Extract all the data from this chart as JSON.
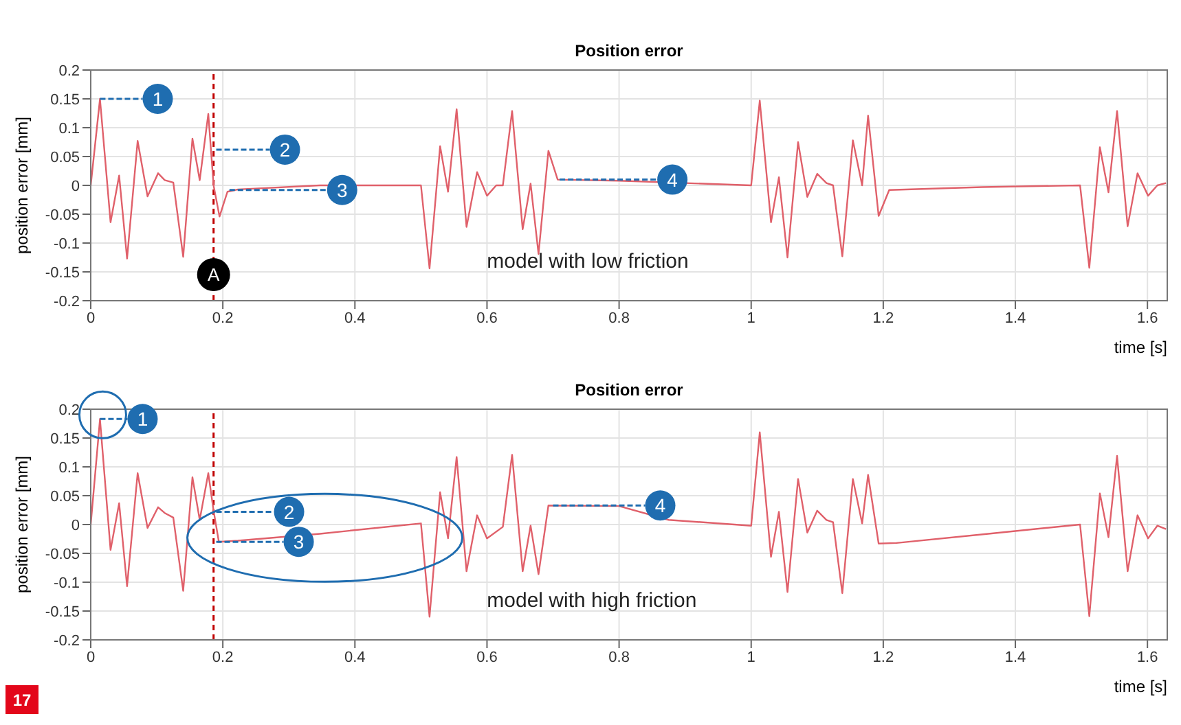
{
  "chart_data": [
    {
      "type": "line",
      "title": "Position error",
      "xlabel": "time [s]",
      "ylabel": "position error [mm]",
      "grid": true,
      "xlim": [
        0,
        1.63
      ],
      "xticks": [
        0,
        0.2,
        0.4,
        0.6,
        0.8,
        1,
        1.2,
        1.4,
        1.6
      ],
      "ylim": [
        -0.2,
        0.2
      ],
      "yticks": [
        -0.2,
        -0.15,
        -0.1,
        -0.05,
        0,
        0.05,
        0.1,
        0.15,
        0.2
      ],
      "x": [
        0,
        0.014,
        0.03,
        0.043,
        0.055,
        0.071,
        0.086,
        0.102,
        0.112,
        0.125,
        0.14,
        0.154,
        0.165,
        0.178,
        0.186,
        0.195,
        0.207,
        0.223,
        0.347,
        0.5,
        0.513,
        0.529,
        0.541,
        0.554,
        0.569,
        0.585,
        0.6,
        0.614,
        0.624,
        0.638,
        0.654,
        0.666,
        0.678,
        0.693,
        0.707,
        0.8,
        0.9,
        1.0,
        1.013,
        1.03,
        1.042,
        1.055,
        1.071,
        1.085,
        1.1,
        1.114,
        1.124,
        1.138,
        1.154,
        1.168,
        1.177,
        1.193,
        1.209,
        1.35,
        1.498,
        1.512,
        1.528,
        1.541,
        1.554,
        1.57,
        1.585,
        1.601,
        1.615,
        1.628
      ],
      "series": [
        {
          "color": "#e0606a",
          "values": [
            0,
            0.15,
            -0.064,
            0.017,
            -0.127,
            0.077,
            -0.019,
            0.021,
            0.009,
            0.005,
            -0.124,
            0.081,
            0.009,
            0.124,
            0,
            -0.054,
            -0.011,
            -0.007,
            0,
            0,
            -0.144,
            0.068,
            -0.011,
            0.132,
            -0.072,
            0.023,
            -0.018,
            0,
            0,
            0.129,
            -0.076,
            0.003,
            -0.119,
            0.06,
            0.01,
            0.008,
            0.004,
            0,
            0.147,
            -0.064,
            0.014,
            -0.125,
            0.075,
            -0.02,
            0.02,
            0.004,
            0,
            -0.123,
            0.078,
            0,
            0.121,
            -0.053,
            -0.008,
            -0.003,
            0,
            -0.143,
            0.066,
            -0.012,
            0.129,
            -0.071,
            0.021,
            -0.018,
            0,
            0.004
          ]
        }
      ],
      "ref_lines": [
        {
          "axis": "x",
          "value": 0.186,
          "label": "A",
          "color": "#c00000",
          "line_style": "dashed"
        }
      ],
      "annotations": [
        {
          "text": "1",
          "x": 0.014,
          "y": 0.15
        },
        {
          "text": "2",
          "x": 0.19,
          "y": 0.062
        },
        {
          "text": "3",
          "x": 0.21,
          "y": -0.008
        },
        {
          "text": "4",
          "x": 0.71,
          "y": 0.01
        },
        "model with low friction"
      ]
    },
    {
      "type": "line",
      "title": "Position error",
      "xlabel": "time [s]",
      "ylabel": "position error [mm]",
      "grid": true,
      "xlim": [
        0,
        1.63
      ],
      "xticks": [
        0,
        0.2,
        0.4,
        0.6,
        0.8,
        1,
        1.2,
        1.4,
        1.6
      ],
      "ylim": [
        -0.2,
        0.2
      ],
      "yticks": [
        -0.2,
        -0.15,
        -0.1,
        -0.05,
        0,
        0.05,
        0.1,
        0.15,
        0.2
      ],
      "x": [
        0,
        0.014,
        0.03,
        0.043,
        0.055,
        0.071,
        0.086,
        0.102,
        0.112,
        0.125,
        0.14,
        0.154,
        0.165,
        0.178,
        0.186,
        0.194,
        0.223,
        0.347,
        0.5,
        0.513,
        0.529,
        0.541,
        0.554,
        0.569,
        0.585,
        0.6,
        0.624,
        0.638,
        0.654,
        0.666,
        0.678,
        0.693,
        0.8,
        0.875,
        1.0,
        1.013,
        1.03,
        1.042,
        1.055,
        1.071,
        1.085,
        1.1,
        1.114,
        1.124,
        1.138,
        1.154,
        1.168,
        1.177,
        1.193,
        1.22,
        1.359,
        1.498,
        1.512,
        1.528,
        1.541,
        1.554,
        1.57,
        1.585,
        1.601,
        1.615,
        1.628
      ],
      "series": [
        {
          "color": "#e0606a",
          "values": [
            0,
            0.183,
            -0.044,
            0.037,
            -0.107,
            0.089,
            -0.006,
            0.03,
            0.02,
            0.012,
            -0.115,
            0.082,
            0.008,
            0.089,
            0.024,
            -0.03,
            -0.028,
            -0.016,
            0.002,
            -0.16,
            0.056,
            -0.024,
            0.117,
            -0.081,
            0.016,
            -0.024,
            -0.004,
            0.121,
            -0.081,
            -0.002,
            -0.086,
            0.033,
            0.032,
            0.008,
            -0.002,
            0.16,
            -0.056,
            0.022,
            -0.117,
            0.079,
            -0.014,
            0.024,
            0.008,
            0.004,
            -0.119,
            0.079,
            0.002,
            0.086,
            -0.033,
            -0.032,
            -0.016,
            0,
            -0.159,
            0.054,
            -0.022,
            0.119,
            -0.081,
            0.016,
            -0.024,
            -0.002,
            -0.008
          ]
        }
      ],
      "ref_lines": [
        {
          "axis": "x",
          "value": 0.186,
          "color": "#c00000",
          "line_style": "dashed"
        }
      ],
      "annotations": [
        {
          "text": "1",
          "x": 0.014,
          "y": 0.183
        },
        {
          "text": "2",
          "x": 0.19,
          "y": 0.022
        },
        {
          "text": "3",
          "x": 0.19,
          "y": -0.03
        },
        {
          "text": "4",
          "x": 0.7,
          "y": 0.033
        },
        "model with high friction",
        "17"
      ]
    }
  ]
}
